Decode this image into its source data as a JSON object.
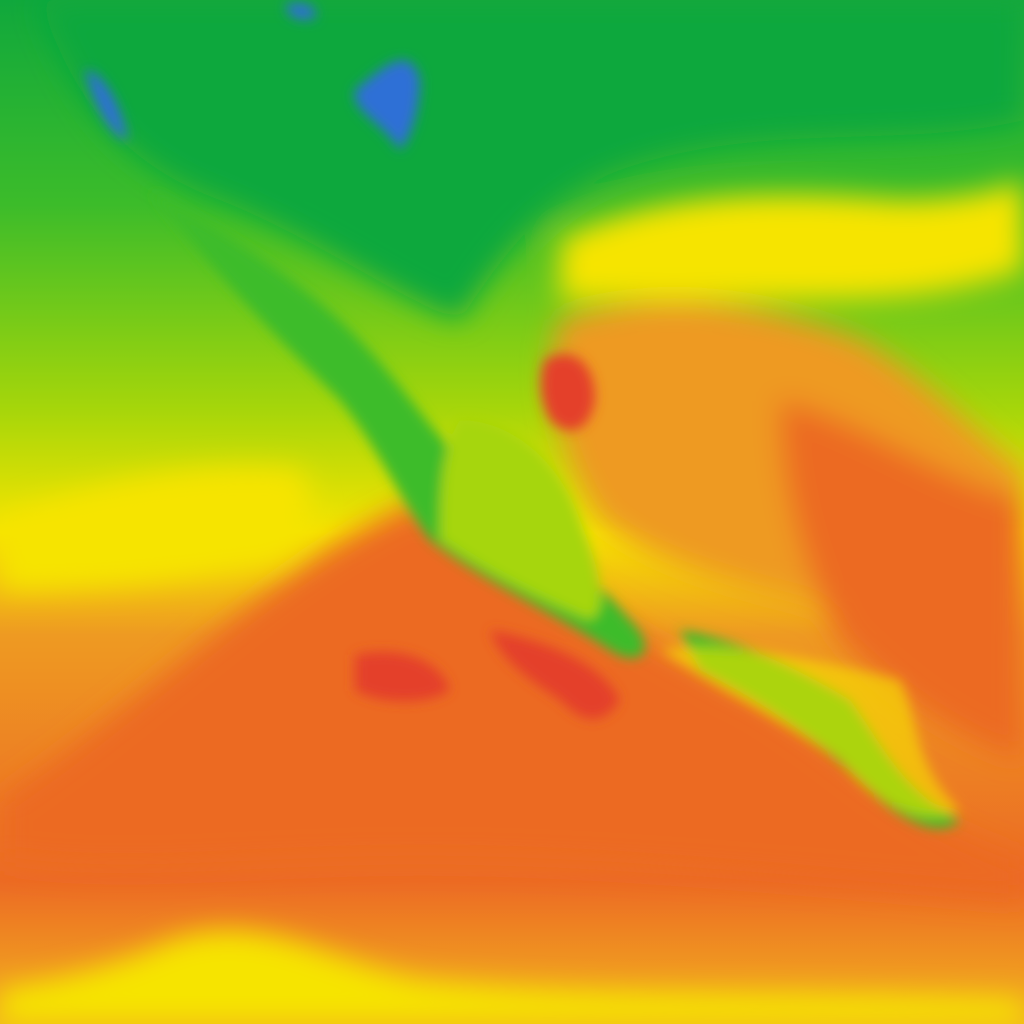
{
  "map": {
    "palette": {
      "cold_blue": "#2f6fd6",
      "dark_green": "#10a83c",
      "green": "#3cbc2a",
      "yellow_green": "#a6d60a",
      "yellow": "#f6e400",
      "orange_yellow": "#f2b41e",
      "orange": "#ee9a22",
      "red_orange": "#ec6a24",
      "red": "#e4402a"
    }
  }
}
